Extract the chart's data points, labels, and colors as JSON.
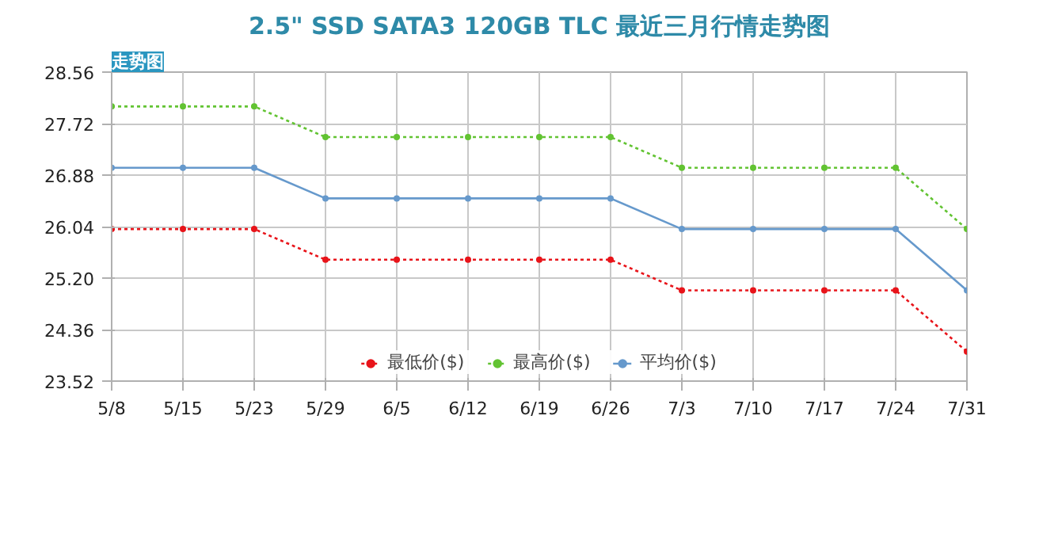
{
  "chart_data": {
    "type": "line",
    "title": "2.5\" SSD SATA3 120GB TLC 最近三月行情走势图",
    "annotations": [
      "走势图"
    ],
    "categories": [
      "5/8",
      "5/15",
      "5/23",
      "5/29",
      "6/5",
      "6/12",
      "6/19",
      "6/26",
      "7/3",
      "7/10",
      "7/17",
      "7/24",
      "7/31"
    ],
    "series": [
      {
        "name": "最低价($)",
        "color": "#e8141a",
        "line_style": "dotted",
        "values": [
          26.0,
          26.0,
          26.0,
          25.5,
          25.5,
          25.5,
          25.5,
          25.5,
          25.0,
          25.0,
          25.0,
          25.0,
          24.0
        ]
      },
      {
        "name": "最高价($)",
        "color": "#62c332",
        "line_style": "dotted",
        "values": [
          28.0,
          28.0,
          28.0,
          27.5,
          27.5,
          27.5,
          27.5,
          27.5,
          27.0,
          27.0,
          27.0,
          27.0,
          26.0
        ]
      },
      {
        "name": "平均价($)",
        "color": "#6699cc",
        "line_style": "solid",
        "values": [
          27.0,
          27.0,
          27.0,
          26.5,
          26.5,
          26.5,
          26.5,
          26.5,
          26.0,
          26.0,
          26.0,
          26.0,
          25.0
        ]
      }
    ],
    "ylim": [
      23.52,
      28.56
    ],
    "yticks": [
      23.52,
      24.36,
      {
        "value": 25.2,
        "label": "25.20"
      },
      26.04,
      26.88,
      27.72,
      28.56
    ],
    "grid": true,
    "legend": "bottom",
    "marker": "circle"
  }
}
